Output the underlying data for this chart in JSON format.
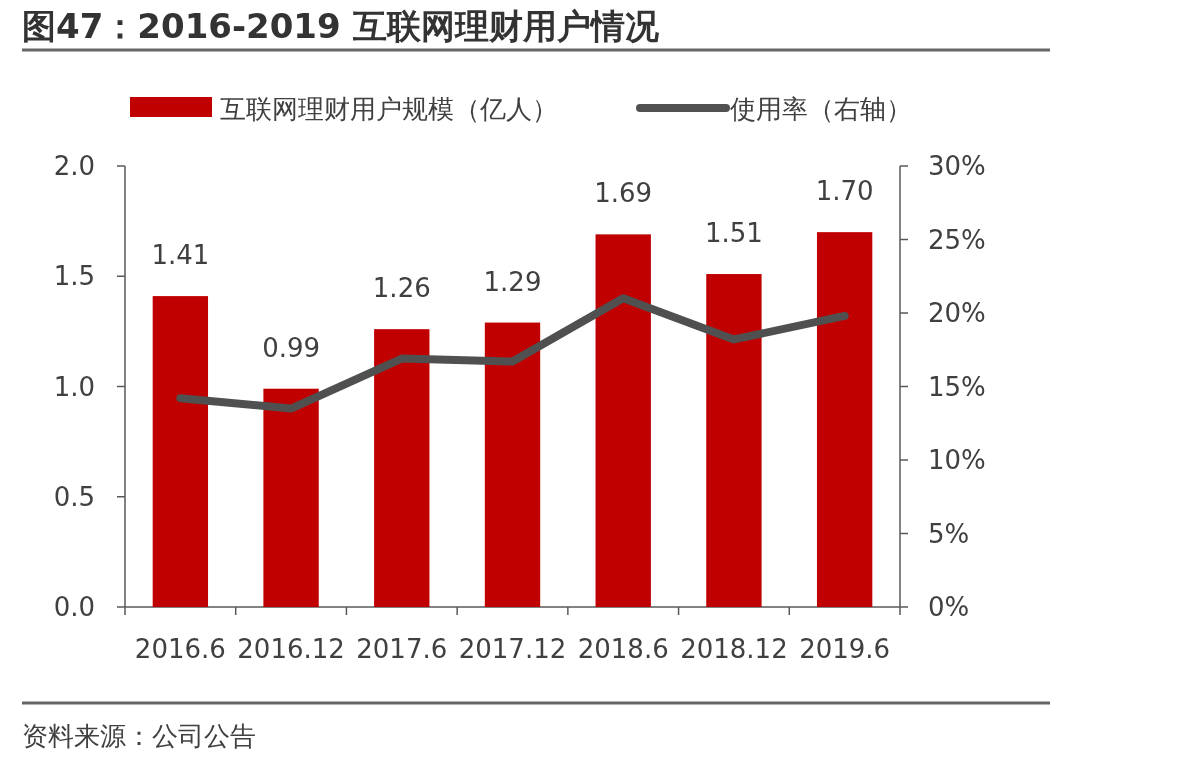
{
  "chart_data": {
    "type": "bar",
    "title": "图47：2016-2019 互联网理财用户情况",
    "categories": [
      "2016.6",
      "2016.12",
      "2017.6",
      "2017.12",
      "2018.6",
      "2018.12",
      "2019.6"
    ],
    "series": [
      {
        "name": "互联网理财用户规模（亿人）",
        "color": "#c00000",
        "values": [
          1.41,
          0.99,
          1.26,
          1.29,
          1.69,
          1.51,
          1.7
        ],
        "value_labels": [
          "1.41",
          "0.99",
          "1.26",
          "1.29",
          "1.69",
          "1.51",
          "1.70"
        ]
      },
      {
        "name": "使用率（右轴）",
        "type": "line",
        "axis": "y2",
        "color": "#505050",
        "marker": "none",
        "line_style": "solid",
        "values": [
          14.2,
          13.5,
          16.9,
          16.7,
          21.0,
          18.2,
          19.8
        ]
      }
    ],
    "ylim": [
      0,
      2.0
    ],
    "yticks": [
      {
        "value": 0,
        "label": "0.0"
      },
      {
        "value": 0.5,
        "label": "0.5"
      },
      {
        "value": 1.0,
        "label": "1.0"
      },
      {
        "value": 1.5,
        "label": "1.5"
      },
      {
        "value": 2.0,
        "label": "2.0"
      }
    ],
    "y2lim": [
      0,
      30
    ],
    "y2ticks": [
      {
        "value": 0,
        "label": "0%"
      },
      {
        "value": 5,
        "label": "5%"
      },
      {
        "value": 10,
        "label": "10%"
      },
      {
        "value": 15,
        "label": "15%"
      },
      {
        "value": 20,
        "label": "20%"
      },
      {
        "value": 25,
        "label": "25%"
      },
      {
        "value": 30,
        "label": "30%"
      }
    ],
    "legend": "top",
    "grid": false,
    "annotations": [
      "资料来源：公司公告"
    ]
  }
}
